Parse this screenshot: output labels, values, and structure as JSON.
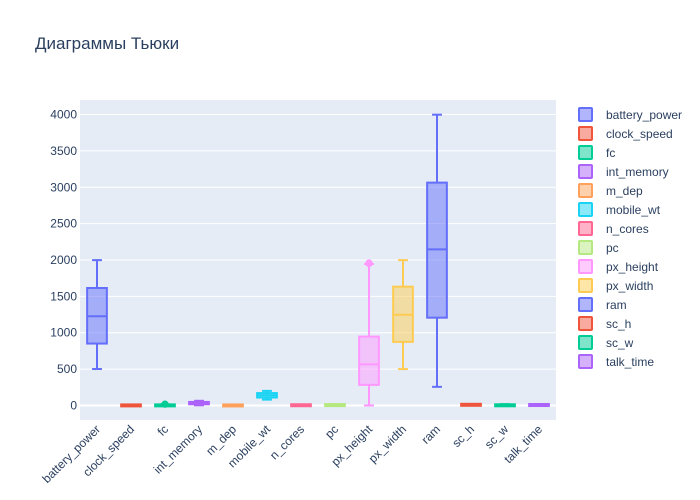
{
  "chart_data": {
    "type": "box",
    "title": "Диаграммы Тьюки",
    "xlabel": "",
    "ylabel": "",
    "ylim": [
      -200,
      4200
    ],
    "yticks": [
      0,
      500,
      1000,
      1500,
      2000,
      2500,
      3000,
      3500,
      4000
    ],
    "grid": true,
    "legend_position": "right",
    "series": [
      {
        "name": "battery_power",
        "color": "#636efa",
        "min": 501,
        "q1": 851,
        "median": 1226,
        "q3": 1615,
        "max": 1998,
        "outliers": []
      },
      {
        "name": "clock_speed",
        "color": "#EF553B",
        "min": 0.5,
        "q1": 0.7,
        "median": 1.5,
        "q3": 2.2,
        "max": 3.0,
        "outliers": []
      },
      {
        "name": "fc",
        "color": "#00cc96",
        "min": 0,
        "q1": 1,
        "median": 3,
        "q3": 7,
        "max": 16,
        "outliers": [
          17,
          18,
          19
        ]
      },
      {
        "name": "int_memory",
        "color": "#ab63fa",
        "min": 2,
        "q1": 16,
        "median": 32,
        "q3": 48,
        "max": 64,
        "outliers": []
      },
      {
        "name": "m_dep",
        "color": "#FFA15A",
        "min": 0.1,
        "q1": 0.2,
        "median": 0.5,
        "q3": 0.8,
        "max": 1.0,
        "outliers": []
      },
      {
        "name": "mobile_wt",
        "color": "#19d3f3",
        "min": 80,
        "q1": 109,
        "median": 141,
        "q3": 170,
        "max": 200,
        "outliers": []
      },
      {
        "name": "n_cores",
        "color": "#FF6692",
        "min": 1,
        "q1": 3,
        "median": 4,
        "q3": 7,
        "max": 8,
        "outliers": []
      },
      {
        "name": "pc",
        "color": "#B6E880",
        "min": 0,
        "q1": 5,
        "median": 10,
        "q3": 15,
        "max": 20,
        "outliers": []
      },
      {
        "name": "px_height",
        "color": "#FF97FF",
        "min": 0,
        "q1": 283,
        "median": 564,
        "q3": 947,
        "max": 1944,
        "outliers": [
          1949,
          1960
        ]
      },
      {
        "name": "px_width",
        "color": "#FECB52",
        "min": 500,
        "q1": 874,
        "median": 1247,
        "q3": 1633,
        "max": 1998,
        "outliers": []
      },
      {
        "name": "ram",
        "color": "#636efa",
        "min": 256,
        "q1": 1207,
        "median": 2146,
        "q3": 3064,
        "max": 3998,
        "outliers": []
      },
      {
        "name": "sc_h",
        "color": "#EF553B",
        "min": 5,
        "q1": 9,
        "median": 12,
        "q3": 16,
        "max": 19,
        "outliers": []
      },
      {
        "name": "sc_w",
        "color": "#00cc96",
        "min": 0,
        "q1": 2,
        "median": 5,
        "q3": 9,
        "max": 18,
        "outliers": []
      },
      {
        "name": "talk_time",
        "color": "#ab63fa",
        "min": 2,
        "q1": 6,
        "median": 11,
        "q3": 16,
        "max": 20,
        "outliers": []
      }
    ]
  }
}
